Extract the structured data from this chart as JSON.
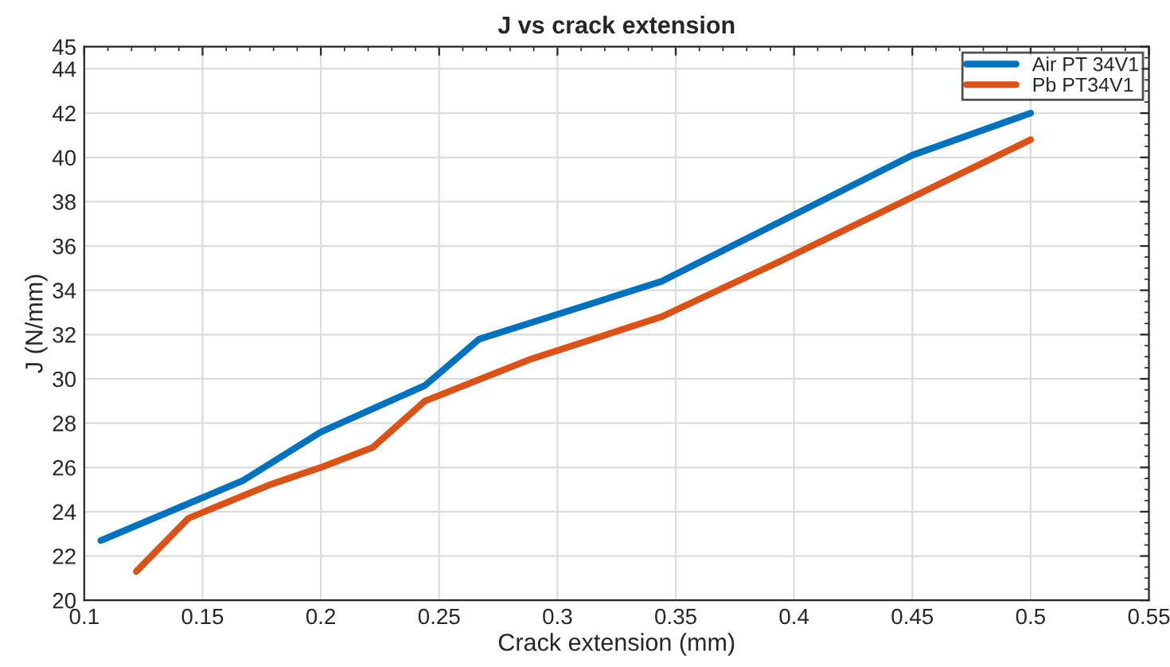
{
  "chart_data": {
    "type": "line",
    "title": "J vs crack extension",
    "xlabel": "Crack extension (mm)",
    "ylabel": "J (N/mm)",
    "series": [
      {
        "name": "Air PT 34V1",
        "color": "#0072bd",
        "x": [
          0.107,
          0.167,
          0.2,
          0.244,
          0.267,
          0.344,
          0.45,
          0.5
        ],
        "values": [
          22.7,
          25.4,
          27.6,
          29.7,
          31.8,
          34.4,
          40.1,
          42.0
        ]
      },
      {
        "name": "Pb PT34V1",
        "color": "#d95319",
        "x": [
          0.122,
          0.144,
          0.178,
          0.2,
          0.222,
          0.244,
          0.289,
          0.344,
          0.394,
          0.5
        ],
        "values": [
          21.3,
          23.7,
          25.2,
          26.0,
          26.9,
          29.0,
          30.9,
          32.8,
          35.3,
          40.8
        ]
      }
    ],
    "xlim": [
      0.1,
      0.55
    ],
    "xticks": [
      0.1,
      0.15,
      0.2,
      0.25,
      0.3,
      0.35,
      0.4,
      0.45,
      0.5,
      0.55
    ],
    "ylim": [
      20,
      45
    ],
    "yticks": [
      20,
      22,
      24,
      26,
      28,
      30,
      32,
      34,
      36,
      38,
      40,
      42,
      44,
      45
    ],
    "grid": true,
    "legend": "top right",
    "marker": "none",
    "line_style": "solid"
  }
}
